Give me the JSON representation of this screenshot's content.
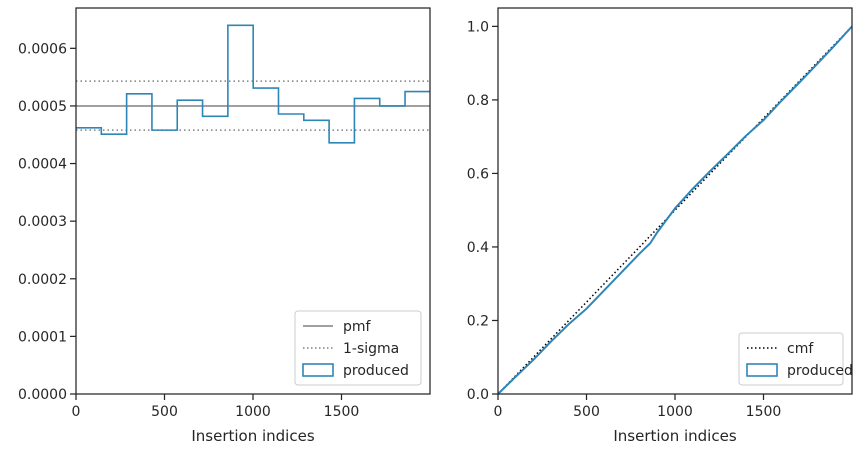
{
  "chart_data": [
    {
      "type": "step",
      "xlabel": "Insertion indices",
      "ylabel": "",
      "title": "",
      "xlim": [
        0,
        2000
      ],
      "ylim": [
        0,
        0.00067
      ],
      "xticks": [
        0,
        500,
        1000,
        1500
      ],
      "xtick_labels": [
        "0",
        "500",
        "1000",
        "1500"
      ],
      "yticks": [
        0,
        0.0001,
        0.0002,
        0.0003,
        0.0004,
        0.0005,
        0.0006
      ],
      "ytick_labels": [
        "0.0000",
        "0.0001",
        "0.0002",
        "0.0003",
        "0.0004",
        "0.0005",
        "0.0006"
      ],
      "grid": false,
      "legend_position": "lower-right",
      "reference_lines": [
        {
          "name": "pmf",
          "y": 0.0005,
          "style": "solid",
          "color": "#808080"
        },
        {
          "name": "1-sigma",
          "y": 0.000543,
          "style": "dotted",
          "color": "#808080"
        },
        {
          "name": "",
          "y": 0.000458,
          "style": "dotted",
          "color": "#808080"
        }
      ],
      "series": [
        {
          "name": "produced",
          "color": "#2e86b8",
          "bin_edges": [
            0,
            143,
            286,
            429,
            572,
            715,
            858,
            1001,
            1144,
            1287,
            1430,
            1573,
            1716,
            1859,
            2000
          ],
          "values": [
            0.000462,
            0.000451,
            0.000521,
            0.000458,
            0.00051,
            0.000482,
            0.00064,
            0.000531,
            0.000486,
            0.000475,
            0.000436,
            0.000513,
            0.0005,
            0.000525
          ]
        }
      ],
      "legend": [
        {
          "label": "pmf",
          "kind": "line-solid"
        },
        {
          "label": "1-sigma",
          "kind": "line-dotted"
        },
        {
          "label": "produced",
          "kind": "patch"
        }
      ]
    },
    {
      "type": "line",
      "xlabel": "Insertion indices",
      "ylabel": "",
      "title": "",
      "xlim": [
        0,
        2000
      ],
      "ylim": [
        0,
        1.05
      ],
      "xticks": [
        0,
        500,
        1000,
        1500
      ],
      "xtick_labels": [
        "0",
        "500",
        "1000",
        "1500"
      ],
      "yticks": [
        0,
        0.2,
        0.4,
        0.6,
        0.8,
        1.0
      ],
      "ytick_labels": [
        "0.0",
        "0.2",
        "0.4",
        "0.6",
        "0.8",
        "1.0"
      ],
      "grid": false,
      "legend_position": "lower-right",
      "series": [
        {
          "name": "cmf",
          "color": "#000000",
          "style": "dotted",
          "x": [
            0,
            2000
          ],
          "y": [
            0,
            1.0
          ]
        },
        {
          "name": "produced",
          "color": "#2e86b8",
          "style": "solid",
          "x": [
            0,
            100,
            200,
            300,
            400,
            500,
            600,
            700,
            800,
            860,
            900,
            1000,
            1100,
            1200,
            1300,
            1400,
            1500,
            1600,
            1700,
            1800,
            1900,
            2000
          ],
          "y": [
            0,
            0.047,
            0.093,
            0.143,
            0.19,
            0.232,
            0.282,
            0.332,
            0.382,
            0.41,
            0.44,
            0.505,
            0.558,
            0.607,
            0.654,
            0.702,
            0.745,
            0.797,
            0.846,
            0.896,
            0.947,
            1.0
          ]
        }
      ],
      "legend": [
        {
          "label": "cmf",
          "kind": "line-dotted"
        },
        {
          "label": "produced",
          "kind": "patch"
        }
      ]
    }
  ]
}
